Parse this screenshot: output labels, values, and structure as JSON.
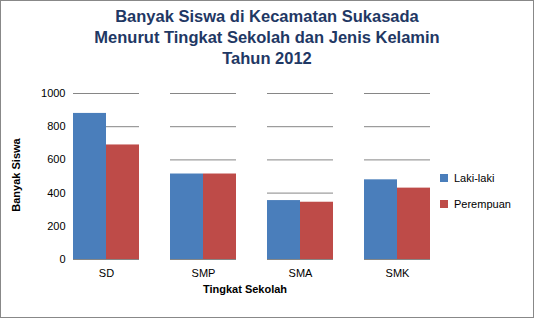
{
  "chart_data": {
    "type": "bar",
    "title": "Banyak Siswa di Kecamatan Sukasada\nMenurut Tingkat Sekolah dan Jenis Kelamin\nTahun 2012",
    "x_label": "Tingkat Sekolah",
    "y_label": "Banyak Siswa",
    "categories": [
      "SD",
      "SMP",
      "SMA",
      "SMK"
    ],
    "series": [
      {
        "name": "Laki-laki",
        "color": "#4a7ebb",
        "values": [
          880,
          515,
          355,
          480
        ]
      },
      {
        "name": "Perempuan",
        "color": "#be4b48",
        "values": [
          690,
          515,
          345,
          430
        ]
      }
    ],
    "ylim": [
      0,
      1000
    ],
    "yticks": [
      0,
      200,
      400,
      600,
      800,
      1000
    ],
    "grid": true,
    "legend": "right"
  }
}
